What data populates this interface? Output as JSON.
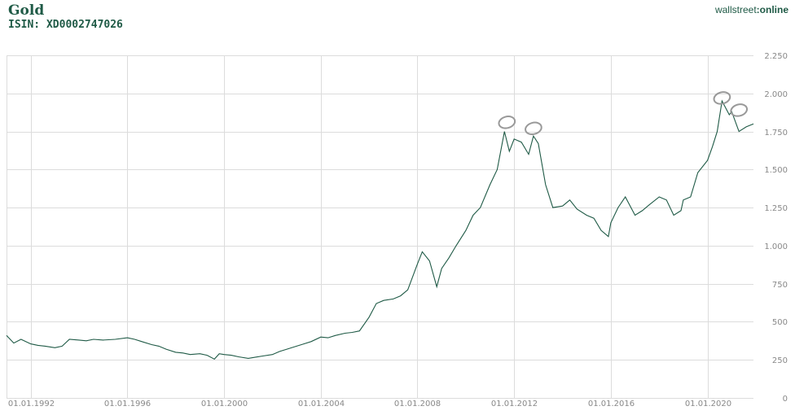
{
  "header": {
    "title": "Gold",
    "isin": "ISIN: XD0002747026",
    "brand_prefix": "wallstreet",
    "brand_suffix": "online"
  },
  "colors": {
    "line": "#1f5a46",
    "grid": "#dcdcdc",
    "annotation": "#999999"
  },
  "chart_data": {
    "type": "line",
    "title": "Gold",
    "xlim": [
      1991.0,
      2021.9
    ],
    "ylim": [
      0,
      2250
    ],
    "y_ticks": [
      0,
      250,
      500,
      750,
      1000,
      1250,
      1500,
      1750,
      2000,
      2250
    ],
    "y_tick_labels": [
      "0",
      "250",
      "500",
      "750",
      "1.000",
      "1.250",
      "1.500",
      "1.750",
      "2.000",
      "2.250"
    ],
    "x_ticks": [
      1992,
      1996,
      2000,
      2004,
      2008,
      2012,
      2016,
      2020
    ],
    "x_tick_labels": [
      "01.01.1992",
      "01.01.1996",
      "01.01.2000",
      "01.01.2004",
      "01.01.2008",
      "01.01.2012",
      "01.01.2016",
      "01.01.2020"
    ],
    "grid": true,
    "y_axis_position": "right",
    "series": [
      {
        "name": "Gold",
        "x": [
          1991.0,
          1991.3,
          1991.6,
          1992.0,
          1992.3,
          1992.6,
          1993.0,
          1993.3,
          1993.6,
          1994.0,
          1994.3,
          1994.6,
          1995.0,
          1995.5,
          1996.0,
          1996.3,
          1996.6,
          1997.0,
          1997.3,
          1997.6,
          1998.0,
          1998.3,
          1998.6,
          1999.0,
          1999.3,
          1999.6,
          1999.8,
          2000.0,
          2000.3,
          2000.6,
          2001.0,
          2001.3,
          2001.6,
          2002.0,
          2002.3,
          2002.6,
          2003.0,
          2003.3,
          2003.6,
          2004.0,
          2004.3,
          2004.6,
          2005.0,
          2005.3,
          2005.6,
          2006.0,
          2006.3,
          2006.6,
          2007.0,
          2007.3,
          2007.6,
          2008.0,
          2008.2,
          2008.5,
          2008.8,
          2009.0,
          2009.3,
          2009.6,
          2010.0,
          2010.3,
          2010.6,
          2011.0,
          2011.3,
          2011.6,
          2011.8,
          2012.0,
          2012.3,
          2012.6,
          2012.8,
          2013.0,
          2013.3,
          2013.6,
          2014.0,
          2014.3,
          2014.6,
          2015.0,
          2015.3,
          2015.6,
          2015.9,
          2016.0,
          2016.3,
          2016.6,
          2017.0,
          2017.3,
          2017.6,
          2018.0,
          2018.3,
          2018.6,
          2018.9,
          2019.0,
          2019.3,
          2019.6,
          2020.0,
          2020.2,
          2020.4,
          2020.6,
          2020.9,
          2021.0,
          2021.3,
          2021.6,
          2021.9
        ],
        "values": [
          410,
          360,
          385,
          355,
          345,
          340,
          330,
          340,
          385,
          380,
          375,
          385,
          380,
          385,
          395,
          385,
          370,
          350,
          340,
          320,
          300,
          295,
          285,
          290,
          280,
          255,
          290,
          285,
          280,
          270,
          260,
          268,
          275,
          285,
          305,
          320,
          340,
          355,
          370,
          400,
          395,
          410,
          425,
          430,
          440,
          530,
          620,
          640,
          650,
          670,
          710,
          880,
          960,
          900,
          730,
          850,
          920,
          1000,
          1100,
          1200,
          1250,
          1400,
          1500,
          1750,
          1620,
          1700,
          1680,
          1600,
          1720,
          1670,
          1400,
          1250,
          1260,
          1300,
          1240,
          1200,
          1180,
          1100,
          1060,
          1150,
          1250,
          1320,
          1200,
          1230,
          1270,
          1320,
          1300,
          1200,
          1230,
          1300,
          1320,
          1480,
          1560,
          1650,
          1750,
          1950,
          1860,
          1880,
          1750,
          1780,
          1800
        ]
      }
    ],
    "annotations": [
      {
        "type": "circle",
        "x": 2011.7,
        "y": 1810
      },
      {
        "type": "circle",
        "x": 2012.8,
        "y": 1770
      },
      {
        "type": "circle",
        "x": 2020.6,
        "y": 1970
      },
      {
        "type": "circle",
        "x": 2021.3,
        "y": 1890
      }
    ]
  }
}
